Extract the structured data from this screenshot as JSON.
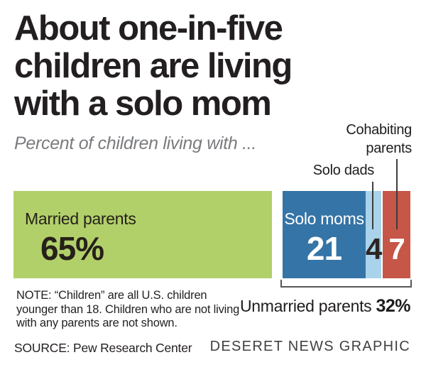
{
  "title": {
    "lines": [
      "About one-in-five",
      "children are living",
      "with a solo mom"
    ]
  },
  "subtitle": "Percent of children living with ...",
  "chart_data": {
    "type": "bar",
    "orientation": "horizontal-stacked",
    "title": "About one-in-five children are living with a solo mom",
    "subtitle": "Percent of children living with ...",
    "unit": "percent of U.S. children",
    "categories": [
      "Married parents",
      "Solo moms",
      "Solo dads",
      "Cohabiting parents"
    ],
    "values": [
      65,
      21,
      4,
      7
    ],
    "colors": [
      "#b1d06a",
      "#3574a6",
      "#a9d3ea",
      "#c65647"
    ],
    "group_bracket": {
      "label": "Unmarried parents",
      "value": 32,
      "members": [
        "Solo moms",
        "Solo dads",
        "Cohabiting parents"
      ]
    },
    "xlim": [
      0,
      100
    ],
    "grid": false,
    "legend": "labels drawn in/above segments"
  },
  "bars": {
    "married": {
      "label": "Married parents",
      "value": "65%"
    },
    "solo_moms": {
      "label": "Solo moms",
      "value": "21"
    },
    "solo_dads": {
      "value": "4"
    },
    "cohabiting": {
      "value": "7"
    }
  },
  "annotations": {
    "cohabiting_line1": "Cohabiting",
    "cohabiting_line2": "parents",
    "solo_dads": "Solo dads"
  },
  "bracket_caption": {
    "label": "Unmarried parents ",
    "value": "32%"
  },
  "note": {
    "lines": [
      "NOTE: “Children” are all U.S. children",
      "younger than 18. Children who are not living",
      "with any parents are not shown."
    ]
  },
  "source": "SOURCE: Pew Research Center",
  "credit": "DESERET NEWS GRAPHIC",
  "colors": {
    "headline": "#231f20",
    "subtitle_gray": "#797b7e",
    "green": "#b1d06a",
    "blue": "#3574a6",
    "light_blue": "#a9d3ea",
    "red": "#c65647",
    "bracket": "#565758"
  }
}
